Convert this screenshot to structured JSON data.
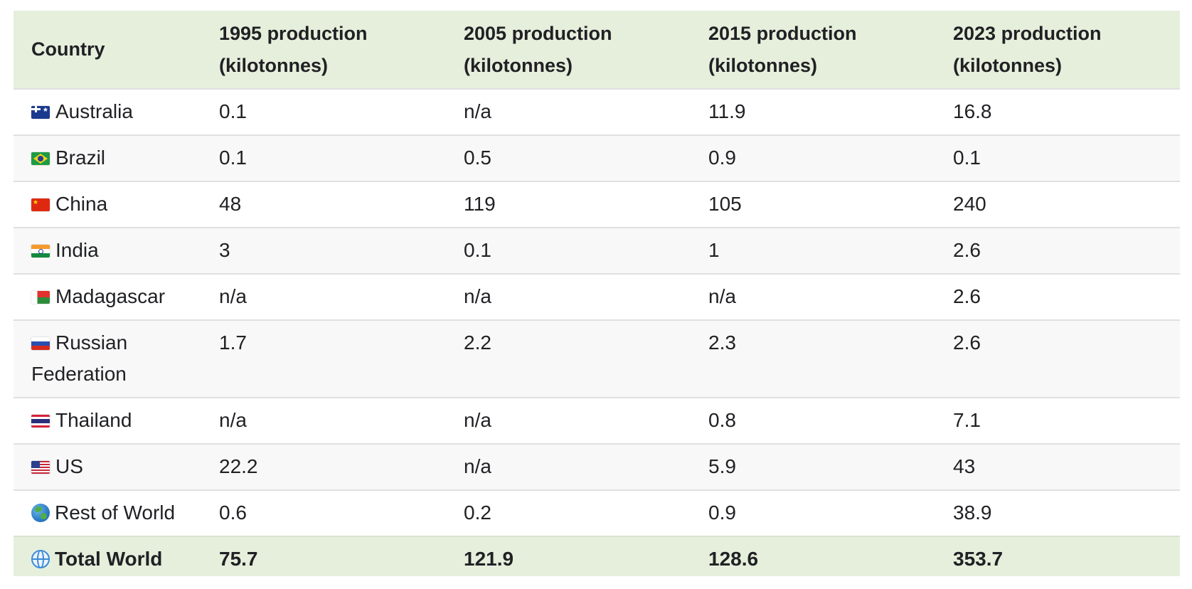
{
  "table": {
    "headers": [
      "Country",
      "1995 production (kilotonnes)",
      "2005 production (kilotonnes)",
      "2015 production (kilotonnes)",
      "2023 production (kilotonnes)"
    ],
    "rows": [
      {
        "flag": "australia-flag-icon",
        "country": "Australia",
        "values": [
          "0.1",
          "n/a",
          "11.9",
          "16.8"
        ]
      },
      {
        "flag": "brazil-flag-icon",
        "country": "Brazil",
        "values": [
          "0.1",
          "0.5",
          "0.9",
          "0.1"
        ]
      },
      {
        "flag": "china-flag-icon",
        "country": "China",
        "values": [
          "48",
          "119",
          "105",
          "240"
        ]
      },
      {
        "flag": "india-flag-icon",
        "country": "India",
        "values": [
          "3",
          "0.1",
          "1",
          "2.6"
        ]
      },
      {
        "flag": "madagascar-flag-icon",
        "country": "Madagascar",
        "values": [
          "n/a",
          "n/a",
          "n/a",
          "2.6"
        ]
      },
      {
        "flag": "russia-flag-icon",
        "country": "Russian Federation",
        "values": [
          "1.7",
          "2.2",
          "2.3",
          "2.6"
        ]
      },
      {
        "flag": "thailand-flag-icon",
        "country": "Thailand",
        "values": [
          "n/a",
          "n/a",
          "0.8",
          "7.1"
        ]
      },
      {
        "flag": "us-flag-icon",
        "country": "US",
        "values": [
          "22.2",
          "n/a",
          "5.9",
          "43"
        ]
      },
      {
        "flag": "earth-globe-icon",
        "country": "Rest of World",
        "values": [
          "0.6",
          "0.2",
          "0.9",
          "38.9"
        ]
      }
    ],
    "total": {
      "flag": "wire-globe-icon",
      "country": "Total World",
      "values": [
        "75.7",
        "121.9",
        "128.6",
        "353.7"
      ]
    }
  },
  "colors": {
    "header_bg": "#e6efdc",
    "total_bg": "#e6efdc",
    "row_alt_bg": "#f8f8f8",
    "row_border": "#e0e0e0"
  }
}
